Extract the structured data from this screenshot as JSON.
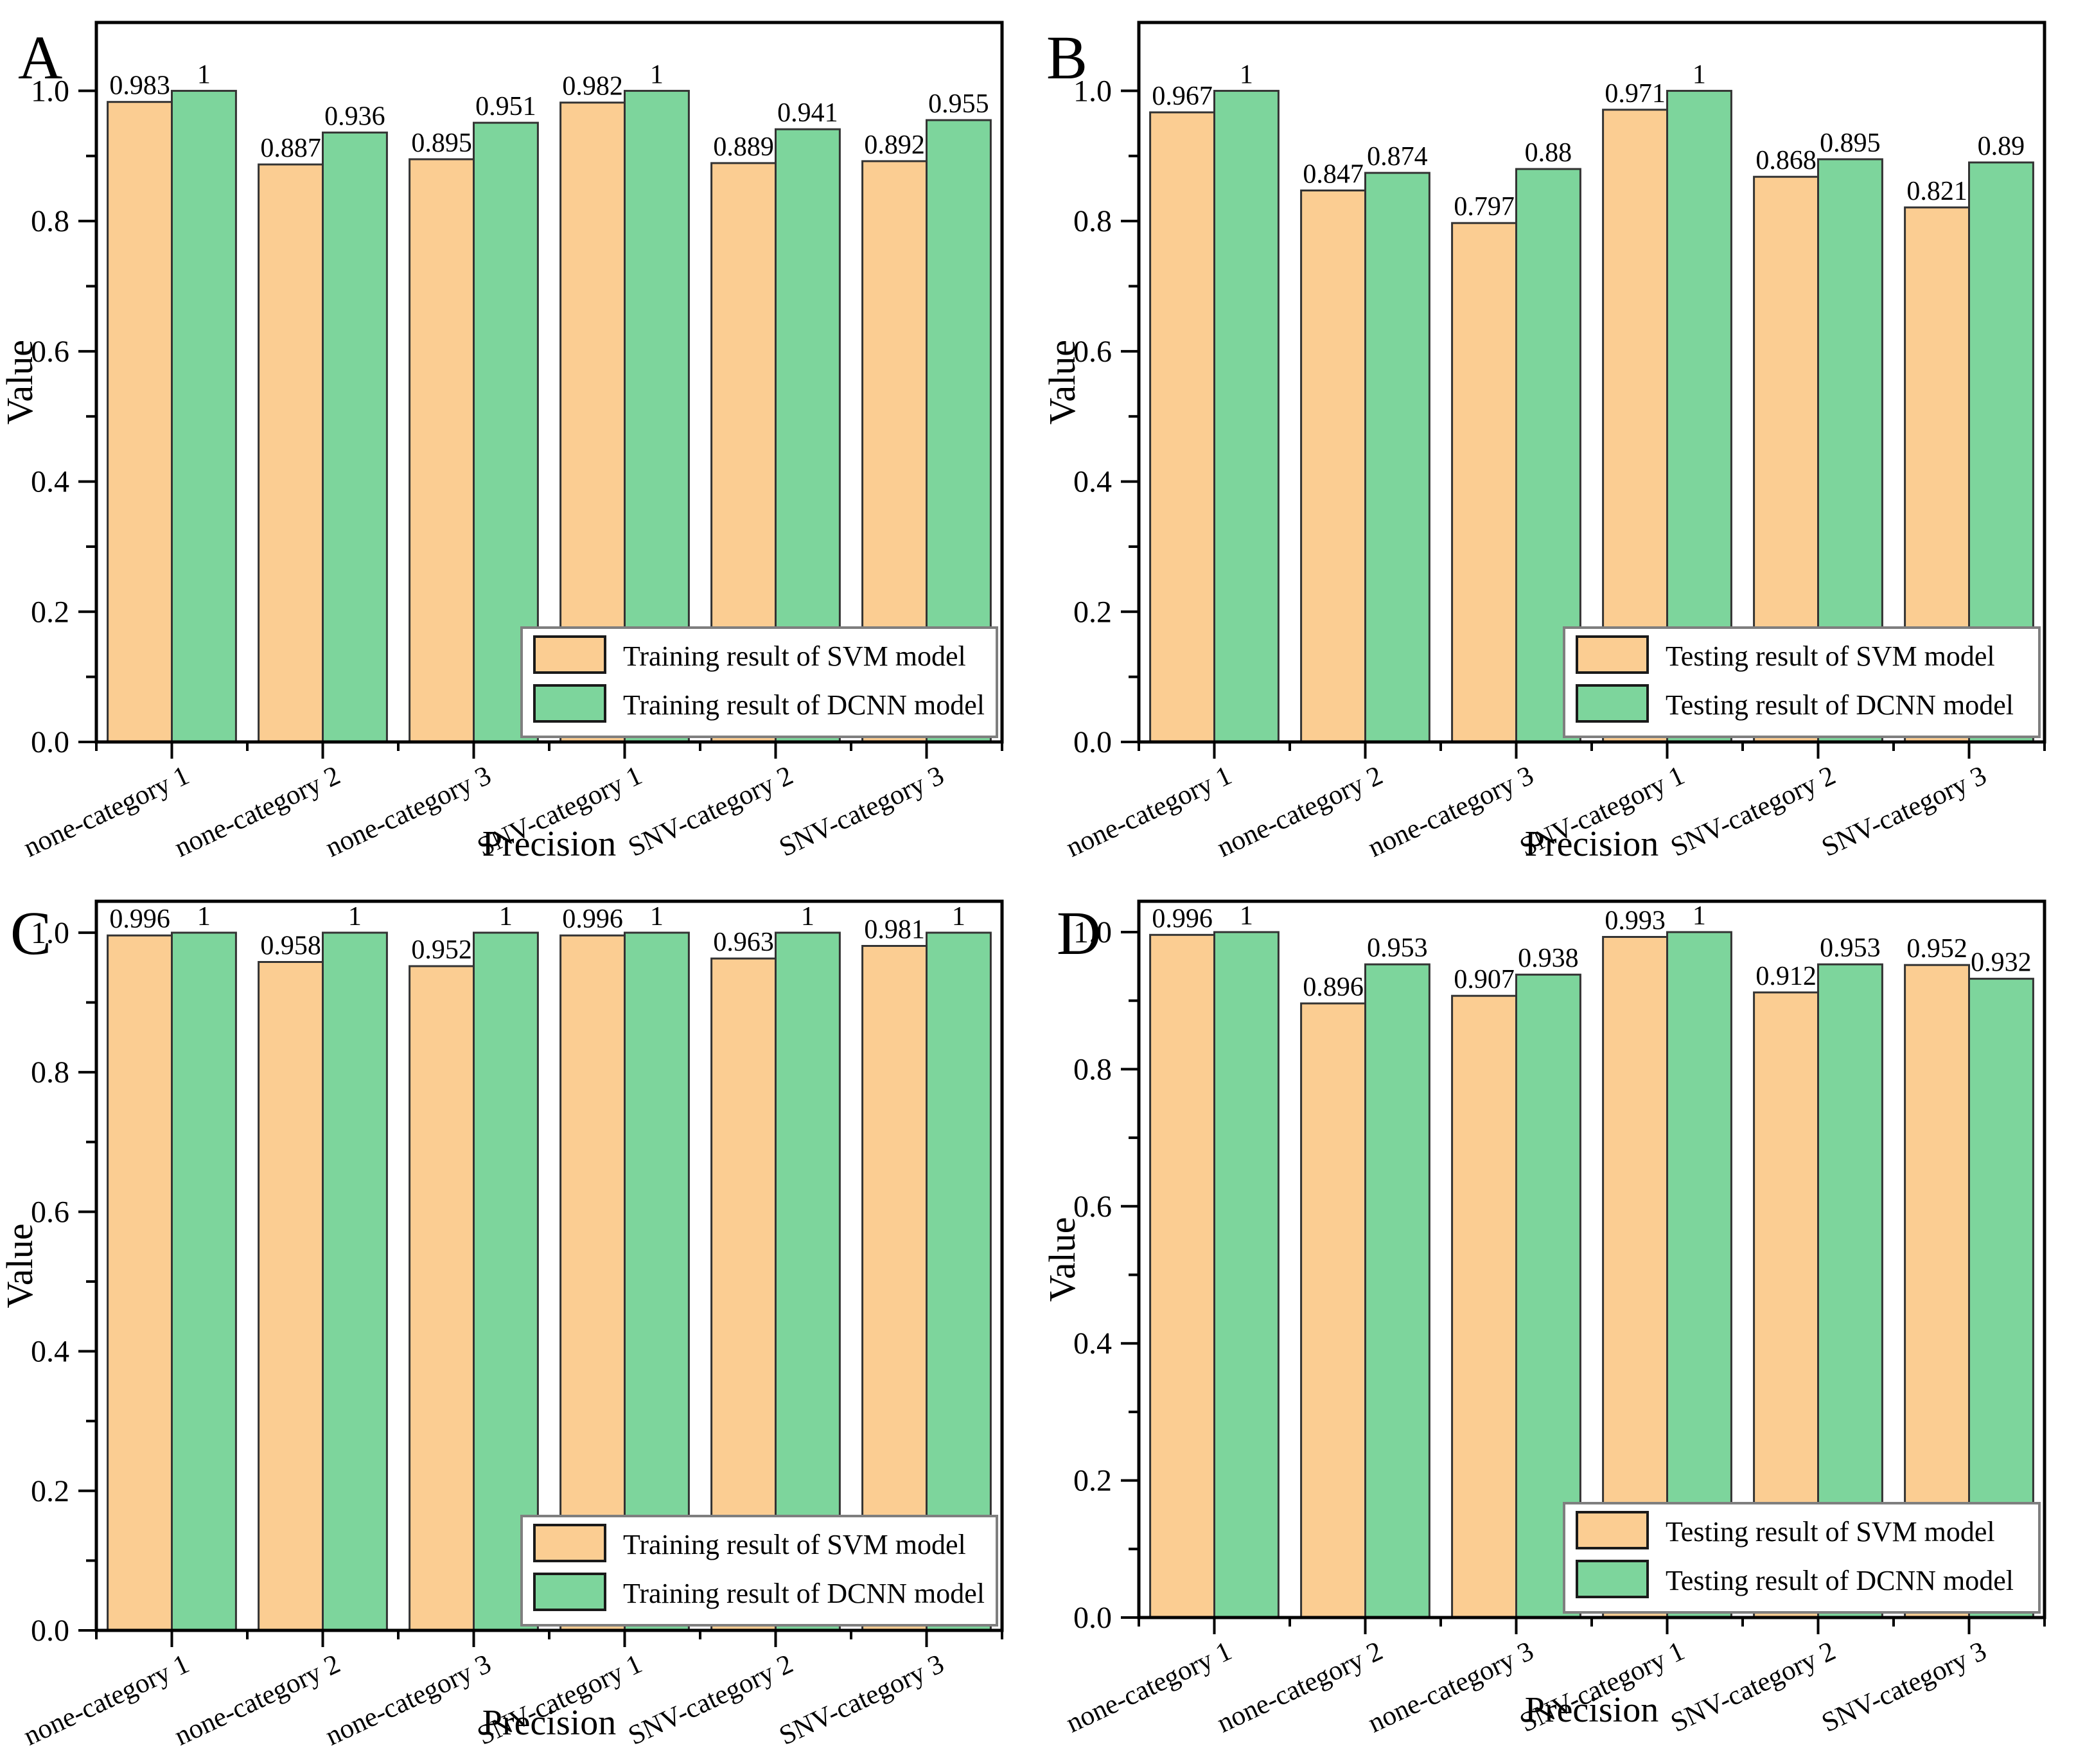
{
  "figure_title": "",
  "style": {
    "svm_fill": "#FBCD92",
    "dcnn_fill": "#7DD59C",
    "bar_edge": "#333333",
    "axis_color": "#000000",
    "legend_border": "#7F7F7F",
    "legend_background": "#FFFFFF",
    "text_color": "#000000",
    "background": "#FFFFFF"
  },
  "chart_data": [
    {
      "type": "bar",
      "panel_label": "A",
      "xlabel": "Precision",
      "ylabel": "Value",
      "ylim": [
        0,
        1.105
      ],
      "yticks": [
        "0.0",
        "0.2",
        "0.4",
        "0.6",
        "0.8",
        "1.0"
      ],
      "minor_yticks": [
        0.1,
        0.3,
        0.5,
        0.7,
        0.9
      ],
      "grid": false,
      "legend_position": "bottom-right",
      "categories": [
        "none-category 1",
        "none-category 2",
        "none-category 3",
        "SNV-category 1",
        "SNV-category 2",
        "SNV-category 3"
      ],
      "series": [
        {
          "name": "Training result of SVM model",
          "fill": "#FBCD92",
          "values": [
            0.983,
            0.887,
            0.895,
            0.982,
            0.889,
            0.892
          ],
          "labels": [
            "0.983",
            "0.887",
            "0.895",
            "0.982",
            "0.889",
            "0.892"
          ]
        },
        {
          "name": "Training result of DCNN model",
          "fill": "#7DD59C",
          "values": [
            1,
            0.936,
            0.951,
            1,
            0.941,
            0.955
          ],
          "labels": [
            "1",
            "0.936",
            "0.951",
            "1",
            "0.941",
            "0.955"
          ]
        }
      ]
    },
    {
      "type": "bar",
      "panel_label": "B",
      "xlabel": "Precision",
      "ylabel": "Value",
      "ylim": [
        0,
        1.105
      ],
      "yticks": [
        "0.0",
        "0.2",
        "0.4",
        "0.6",
        "0.8",
        "1.0"
      ],
      "minor_yticks": [
        0.1,
        0.3,
        0.5,
        0.7,
        0.9
      ],
      "grid": false,
      "legend_position": "bottom-right",
      "categories": [
        "none-category 1",
        "none-category 2",
        "none-category 3",
        "SNV-category 1",
        "SNV-category 2",
        "SNV-category 3"
      ],
      "series": [
        {
          "name": "Testing result of SVM model",
          "fill": "#FBCD92",
          "values": [
            0.967,
            0.847,
            0.797,
            0.971,
            0.868,
            0.821
          ],
          "labels": [
            "0.967",
            "0.847",
            "0.797",
            "0.971",
            "0.868",
            "0.821"
          ]
        },
        {
          "name": "Testing result of DCNN model",
          "fill": "#7DD59C",
          "values": [
            1,
            0.874,
            0.88,
            1,
            0.895,
            0.89
          ],
          "labels": [
            "1",
            "0.874",
            "0.88",
            "1",
            "0.895",
            "0.89"
          ]
        }
      ]
    },
    {
      "type": "bar",
      "panel_label": "C",
      "xlabel": "Precision",
      "ylabel": "Value",
      "ylim": [
        0,
        1.045
      ],
      "yticks": [
        "0.0",
        "0.2",
        "0.4",
        "0.6",
        "0.8",
        "1.0"
      ],
      "minor_yticks": [
        0.1,
        0.3,
        0.5,
        0.7,
        0.9
      ],
      "grid": false,
      "legend_position": "bottom-right",
      "categories": [
        "none-category 1",
        "none-category 2",
        "none-category 3",
        "SNV-category 1",
        "SNV-category 2",
        "SNV-category 3"
      ],
      "series": [
        {
          "name": "Training result of SVM model",
          "fill": "#FBCD92",
          "values": [
            0.996,
            0.958,
            0.952,
            0.996,
            0.963,
            0.981
          ],
          "labels": [
            "0.996",
            "0.958",
            "0.952",
            "0.996",
            "0.963",
            "0.981"
          ]
        },
        {
          "name": "Training result of DCNN model",
          "fill": "#7DD59C",
          "values": [
            1,
            1,
            1,
            1,
            1,
            1
          ],
          "labels": [
            "1",
            "1",
            "1",
            "1",
            "1",
            "1"
          ]
        }
      ]
    },
    {
      "type": "bar",
      "panel_label": "D",
      "xlabel": "Precision",
      "ylabel": "Value",
      "ylim": [
        0,
        1.045
      ],
      "yticks": [
        "0.0",
        "0.2",
        "0.4",
        "0.6",
        "0.8",
        "1.0"
      ],
      "minor_yticks": [
        0.1,
        0.3,
        0.5,
        0.7,
        0.9
      ],
      "grid": false,
      "legend_position": "bottom-right",
      "categories": [
        "none-category 1",
        "none-category 2",
        "none-category 3",
        "SNV-category 1",
        "SNV-category 2",
        "SNV-category 3"
      ],
      "series": [
        {
          "name": "Testing result of SVM model",
          "fill": "#FBCD92",
          "values": [
            0.996,
            0.896,
            0.907,
            0.993,
            0.912,
            0.952
          ],
          "labels": [
            "0.996",
            "0.896",
            "0.907",
            "0.993",
            "0.912",
            "0.952"
          ]
        },
        {
          "name": "Testing result of DCNN model",
          "fill": "#7DD59C",
          "values": [
            1,
            0.953,
            0.938,
            1,
            0.953,
            0.932
          ],
          "labels": [
            "1",
            "0.953",
            "0.938",
            "1",
            "0.953",
            "0.932"
          ]
        }
      ]
    }
  ]
}
